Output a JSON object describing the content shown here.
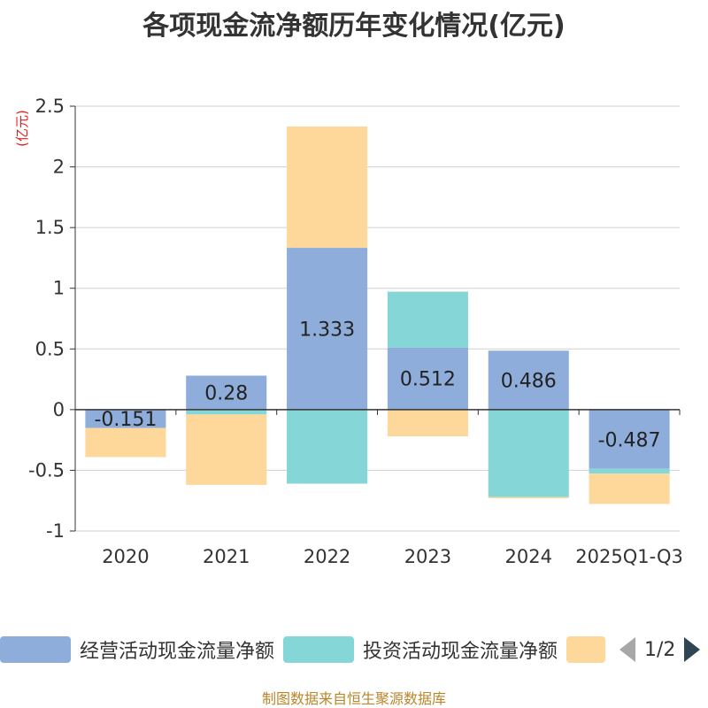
{
  "chart_data": {
    "type": "bar",
    "stacked": true,
    "title": "各项现金流净额历年变化情况(亿元)",
    "ylabel": "(亿元)",
    "xlabel": "",
    "ylim": [
      -1,
      2.5
    ],
    "yticks": [
      2.5,
      2,
      1.5,
      1,
      0.5,
      0,
      -0.5,
      -1
    ],
    "ytick_labels": [
      "2.5",
      "2",
      "1.5",
      "1",
      "0.5",
      "0",
      "-0.5",
      "-1"
    ],
    "categories": [
      "2020",
      "2021",
      "2022",
      "2023",
      "2024",
      "2025Q1-Q3"
    ],
    "series": [
      {
        "name": "经营活动现金流量净额",
        "color": "#8eadda",
        "values": [
          -0.151,
          0.28,
          1.333,
          0.512,
          0.486,
          -0.487
        ],
        "data_labels": [
          "-0.151",
          "0.28",
          "1.333",
          "0.512",
          "0.486",
          "-0.487"
        ]
      },
      {
        "name": "投资活动现金流量净额",
        "color": "#84d7d6",
        "values": [
          0,
          -0.04,
          -0.61,
          0.46,
          -0.72,
          -0.04
        ]
      },
      {
        "name": "",
        "color": "#fed89a",
        "values": [
          -0.24,
          -0.58,
          1.0,
          -0.22,
          -0.01,
          -0.25
        ]
      }
    ],
    "legend": {
      "placement": "bottom",
      "page_label": "1/2"
    }
  },
  "source_note": "制图数据来自恒生聚源数据库"
}
